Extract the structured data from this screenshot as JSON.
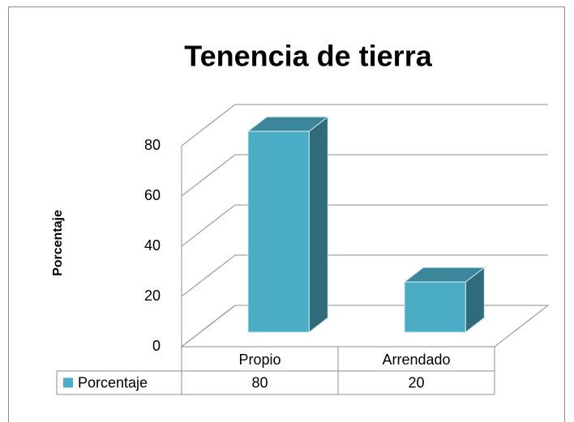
{
  "chart_data": {
    "type": "bar3d",
    "title": "Tenencia de tierra",
    "ylabel": "Porcentaje",
    "categories": [
      "Propio",
      "Arrendado"
    ],
    "series": [
      {
        "name": "Porcentaje",
        "color": "#4bacc6",
        "values": [
          80,
          20
        ]
      }
    ],
    "ylim": [
      0,
      80
    ],
    "yticks": [
      0,
      20,
      40,
      60,
      80
    ],
    "grid": true
  }
}
